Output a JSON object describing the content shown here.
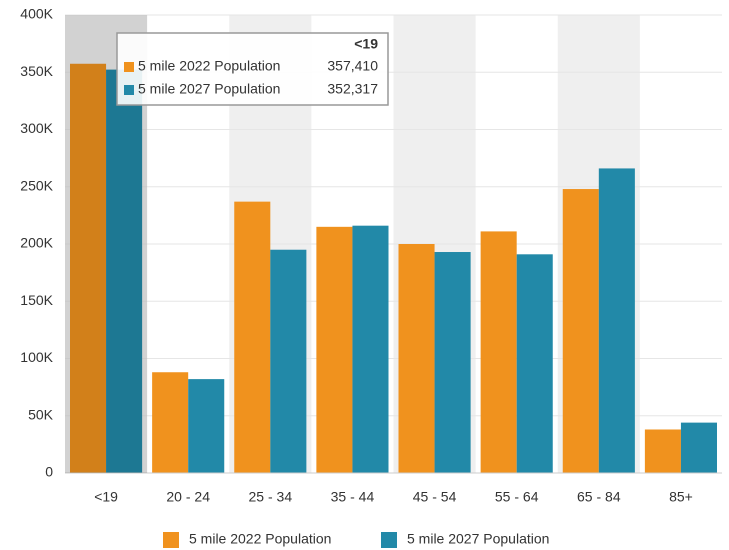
{
  "chart_data": {
    "type": "bar",
    "categories": [
      "<19",
      "20 - 24",
      "25 - 34",
      "35 - 44",
      "45 - 54",
      "55 - 64",
      "65 - 84",
      "85+"
    ],
    "series": [
      {
        "name": "5 mile 2022 Population",
        "color": "#f0921e",
        "values": [
          357410,
          88000,
          237000,
          215000,
          200000,
          211000,
          248000,
          38000
        ],
        "value_labels": [
          "357,410",
          null,
          null,
          null,
          null,
          null,
          null,
          null
        ]
      },
      {
        "name": "5 mile 2027 Population",
        "color": "#2289a8",
        "values": [
          352317,
          82000,
          195000,
          216000,
          193000,
          191000,
          266000,
          44000
        ],
        "value_labels": [
          "352,317",
          null,
          null,
          null,
          null,
          null,
          null,
          null
        ]
      }
    ],
    "ylim": [
      0,
      400000
    ],
    "yticks": [
      0,
      {
        "value": 50000,
        "label": "50K"
      },
      {
        "value": 100000,
        "label": "100K"
      },
      {
        "value": 150000,
        "label": "150K"
      },
      {
        "value": 200000,
        "label": "200K"
      },
      {
        "value": 250000,
        "label": "250K"
      },
      {
        "value": 300000,
        "label": "300K"
      },
      {
        "value": 350000,
        "label": "350K"
      },
      {
        "value": 400000,
        "label": "400K"
      }
    ],
    "grid": true,
    "legend": "bottom"
  }
}
